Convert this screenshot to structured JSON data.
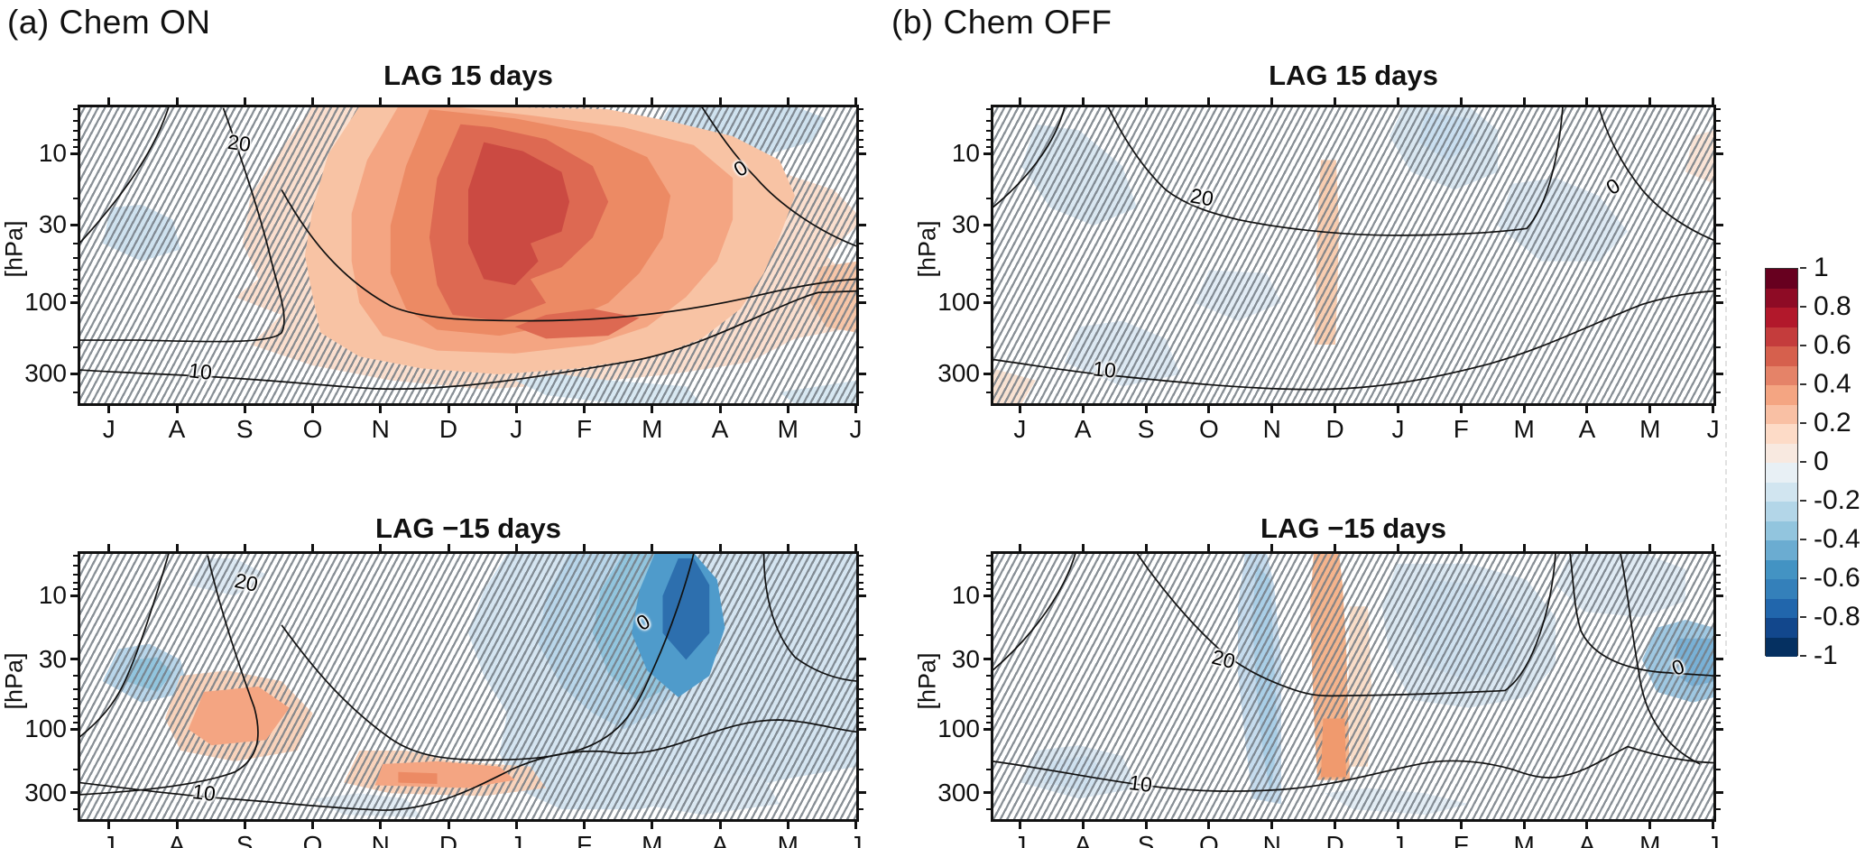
{
  "figure": {
    "panel_a_label": "(a) Chem ON",
    "panel_b_label": "(b) Chem OFF",
    "row1_title": "LAG 15 days",
    "row2_title": "LAG −15 days",
    "ylabel": "[hPa]",
    "months": [
      "J",
      "A",
      "S",
      "O",
      "N",
      "D",
      "J",
      "F",
      "M",
      "A",
      "M",
      "J"
    ],
    "y_ticks": [
      "10",
      "30",
      "100",
      "300"
    ],
    "contour_values": {
      "c20": "20",
      "c10": "10",
      "c0": "0"
    }
  },
  "colorbar": {
    "tick_labels": [
      "1",
      "0.8",
      "0.6",
      "0.4",
      "0.2",
      "0",
      "-0.2",
      "-0.4",
      "-0.6",
      "-0.8",
      "-1"
    ],
    "colors": [
      "#67001f",
      "#8e0b25",
      "#b2182b",
      "#c43c3c",
      "#d6604d",
      "#e58368",
      "#f4a582",
      "#f9c0a4",
      "#fddbc7",
      "#f8e9e0",
      "#e8f0f5",
      "#d1e5f0",
      "#b3d6e8",
      "#92c5de",
      "#6bacd1",
      "#4393c3",
      "#3480ba",
      "#2166ac",
      "#12478c",
      "#053061"
    ]
  },
  "chart_data": [
    {
      "id": "a_lag_plus15",
      "type": "heatmap",
      "subtype": "filled-contour correlation section",
      "group": "(a) Chem ON",
      "title": "LAG 15 days",
      "x_months": [
        "J",
        "A",
        "S",
        "O",
        "N",
        "D",
        "J",
        "F",
        "M",
        "A",
        "M",
        "J"
      ],
      "y_axis": {
        "label": "[hPa]",
        "scale": "log",
        "ticks": [
          10,
          30,
          100,
          300
        ],
        "range_hPa": [
          5,
          480
        ]
      },
      "value_range": [
        -1,
        1
      ],
      "contour_interval": 0.1,
      "overlaid_line_contour_labels": [
        20,
        10,
        0
      ],
      "hatching": "diagonal hatch over non-significant regions",
      "features": [
        "large significant positive correlation dome 0.3-0.8 spanning Sep-May, ~7-250 hPa, unhatched",
        "maximum ~0.7-0.8 centered Nov-Dec near 20-70 hPa with secondary core near 150 hPa in Dec",
        "weak negative patches at upper-right (Apr-May, 5-10 hPa) and near 300 hPa in Dec-Jan",
        "weak positive patch at right edge (Jun, ~100 hPa)"
      ]
    },
    {
      "id": "b_lag_plus15",
      "type": "heatmap",
      "subtype": "filled-contour correlation section",
      "group": "(b) Chem OFF",
      "title": "LAG 15 days",
      "x_months": [
        "J",
        "A",
        "S",
        "O",
        "N",
        "D",
        "J",
        "F",
        "M",
        "A",
        "M",
        "J"
      ],
      "y_axis": {
        "label": "[hPa]",
        "scale": "log",
        "ticks": [
          10,
          30,
          100,
          300
        ],
        "range_hPa": [
          5,
          480
        ]
      },
      "value_range": [
        -1,
        1
      ],
      "contour_interval": 0.1,
      "overlaid_line_contour_labels": [
        20,
        10,
        0
      ],
      "hatching": "diagonal hatch everywhere (nothing significant)",
      "features": [
        "weak negative correlations (-0.1 to -0.2) Aug-Sep upper-left, Feb 5-20 hPa, Mar-Apr 20-70 hPa",
        "narrow weak positive stripe (~0.1-0.2) in Dec between ~20 and 200 hPa",
        "weak negative patch near 200-300 hPa in Aug-Sep"
      ]
    },
    {
      "id": "a_lag_minus15",
      "type": "heatmap",
      "subtype": "filled-contour correlation section",
      "group": "(a) Chem ON",
      "title": "LAG -15 days",
      "x_months": [
        "J",
        "A",
        "S",
        "O",
        "N",
        "D",
        "J",
        "F",
        "M",
        "A",
        "M",
        "J"
      ],
      "y_axis": {
        "label": "[hPa]",
        "scale": "log",
        "ticks": [
          10,
          30,
          100,
          300
        ],
        "range_hPa": [
          5,
          480
        ]
      },
      "value_range": [
        -1,
        1
      ],
      "contour_interval": 0.1,
      "overlaid_line_contour_labels": [
        20,
        10,
        0
      ],
      "hatching": "diagonal hatch over non-significant regions",
      "features": [
        "broad negative region from Nov-Dec aloft to Jun on right side (-0.1 to -0.3)",
        "strong significant negative band -0.5 to -0.7 in Apr, ~5-70 hPa, unhatched",
        "positive patches ~0.2-0.4: Sep-Oct near 50-150 hPa and Jan-Feb near 150-250 hPa",
        "weak negative patch Aug near 30-50 hPa"
      ]
    },
    {
      "id": "b_lag_minus15",
      "type": "heatmap",
      "subtype": "filled-contour correlation section",
      "group": "(b) Chem OFF",
      "title": "LAG -15 days",
      "x_months": [
        "J",
        "A",
        "S",
        "O",
        "N",
        "D",
        "J",
        "F",
        "M",
        "A",
        "M",
        "J"
      ],
      "y_axis": {
        "label": "[hPa]",
        "scale": "log",
        "ticks": [
          10,
          30,
          100,
          300
        ],
        "range_hPa": [
          5,
          480
        ]
      },
      "value_range": [
        -1,
        1
      ],
      "contour_interval": 0.1,
      "overlaid_line_contour_labels": [
        20,
        10,
        0
      ],
      "hatching": "diagonal hatch everywhere except small Dec core",
      "features": [
        "light negative vertical band in Nov (-0.2), adjacent white band, then positive band ~0.2-0.4 in Dec extending to ~250 hPa",
        "broad weak negatives Jan-Mar (-0.1 to -0.2)",
        "moderate negative blob -0.3 to -0.4 at right edge (May-Jun, ~30-70 hPa)",
        "weak negative patches lower-left (Aug ~200-300 hPa) and top-right"
      ]
    }
  ]
}
